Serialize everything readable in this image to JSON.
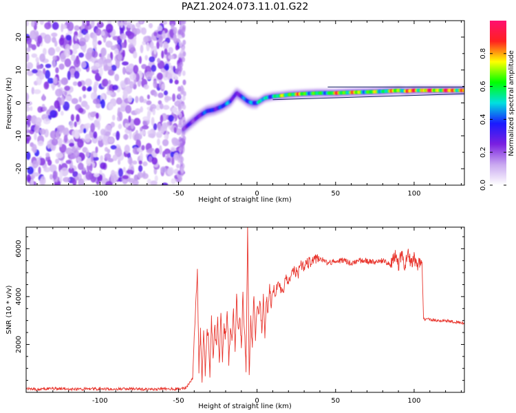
{
  "title": "PAZ1.2024.073.11.01.G22",
  "colorbar": {
    "label": "Normalized spectral amplitude",
    "ticks": [
      "0.0",
      "0.2",
      "0.4",
      "0.6",
      "0.8"
    ],
    "tick_values": [
      0.0,
      0.2,
      0.4,
      0.6,
      0.8
    ],
    "range": [
      0,
      1
    ],
    "colors": [
      "#ffffff",
      "#c9a8f0",
      "#7a1fe0",
      "#1a1aff",
      "#00e0e0",
      "#00ff00",
      "#ffff00",
      "#ff2020",
      "#ff1070"
    ]
  },
  "chart_data": [
    {
      "type": "heatmap",
      "title": "PAZ1.2024.073.11.01.G22",
      "xlabel": "Height of straight line (km)",
      "ylabel": "Frequency (Hz)",
      "xlim": [
        -147,
        132
      ],
      "ylim": [
        -25,
        25
      ],
      "xticks": [
        -100,
        -50,
        0,
        50,
        100
      ],
      "xtick_labels": [
        "-100",
        "-50",
        "0",
        "50",
        "100"
      ],
      "yticks": [
        -20,
        -10,
        0,
        10,
        20
      ],
      "ytick_labels": [
        "-20",
        "-10",
        "0",
        "10",
        "20"
      ],
      "noise_region_x": [
        -147,
        -47
      ],
      "ridge": {
        "x": [
          -47,
          -42,
          -37,
          -32,
          -27,
          -22,
          -17,
          -13,
          -10,
          -6,
          -3,
          0,
          5,
          10,
          15,
          20,
          30,
          40,
          50,
          60,
          70,
          80,
          90,
          95,
          100,
          110,
          120,
          132
        ],
        "freq": [
          -8,
          -6,
          -4,
          -2.5,
          -2,
          -1,
          0.5,
          3,
          2,
          0.5,
          0,
          0,
          1.5,
          2,
          2.2,
          2.5,
          2.8,
          3,
          3,
          3.2,
          3.3,
          3.5,
          3.8,
          3.6,
          3.8,
          3.8,
          3.8,
          3.8
        ],
        "amplitude": [
          0.25,
          0.3,
          0.35,
          0.4,
          0.45,
          0.4,
          0.5,
          0.3,
          0.35,
          0.5,
          0.6,
          0.5,
          0.55,
          0.6,
          0.65,
          0.8,
          0.75,
          0.6,
          0.8,
          0.8,
          0.7,
          0.7,
          0.8,
          0.85,
          0.9,
          0.9,
          0.9,
          0.9
        ]
      }
    },
    {
      "type": "line",
      "xlabel": "Height of straight line (km)",
      "ylabel": "SNR (10 * v/v)",
      "xlim": [
        -147,
        132
      ],
      "ylim": [
        0,
        6900
      ],
      "xticks": [
        -100,
        -50,
        0,
        50,
        100
      ],
      "xtick_labels": [
        "-100",
        "-50",
        "0",
        "50",
        "100"
      ],
      "yticks": [
        2000,
        4000,
        6000
      ],
      "ytick_labels": [
        "2000",
        "4000",
        "6000"
      ],
      "series": [
        {
          "color": "#e8342c",
          "x": [
            -147,
            -140,
            -130,
            -120,
            -110,
            -100,
            -90,
            -80,
            -70,
            -60,
            -50,
            -45,
            -41,
            -40,
            -38,
            -37,
            -36,
            -35,
            -34,
            -33,
            -32,
            -31,
            -30,
            -29,
            -28,
            -27,
            -26,
            -25,
            -24,
            -23,
            -22,
            -21,
            -20,
            -19,
            -18,
            -17,
            -16,
            -15,
            -14,
            -13,
            -12,
            -11,
            -10,
            -9,
            -8,
            -7,
            -6,
            -5,
            -4,
            -3,
            -2,
            -1,
            0,
            1,
            2,
            3,
            4,
            5,
            6,
            7,
            8,
            9,
            10,
            12,
            14,
            16,
            18,
            20,
            22,
            24,
            26,
            28,
            30,
            35,
            40,
            45,
            50,
            55,
            60,
            65,
            70,
            75,
            80,
            85,
            88,
            90,
            92,
            94,
            96,
            98,
            100,
            102,
            104,
            105,
            106,
            110,
            115,
            120,
            125,
            132
          ],
          "y": [
            150,
            120,
            160,
            130,
            140,
            150,
            130,
            160,
            120,
            150,
            140,
            200,
            600,
            2200,
            5200,
            1000,
            2500,
            600,
            2800,
            900,
            2400,
            2600,
            700,
            3200,
            1300,
            2900,
            1900,
            3100,
            1100,
            3300,
            1500,
            2700,
            2300,
            3500,
            1200,
            2500,
            2100,
            3500,
            1800,
            3900,
            2600,
            3200,
            1900,
            4100,
            2600,
            800,
            6900,
            600,
            3100,
            2000,
            4100,
            2300,
            3600,
            3400,
            3800,
            2500,
            4100,
            2500,
            4000,
            3300,
            4300,
            3700,
            4400,
            4200,
            4500,
            4000,
            4800,
            4500,
            5000,
            5100,
            4900,
            5300,
            5300,
            5500,
            5600,
            5400,
            5500,
            5500,
            5400,
            5500,
            5500,
            5400,
            5500,
            5300,
            5700,
            5300,
            5800,
            5200,
            5900,
            5400,
            5600,
            5300,
            5400,
            5400,
            3050,
            3050,
            3000,
            3000,
            2950,
            2900
          ]
        }
      ]
    }
  ]
}
